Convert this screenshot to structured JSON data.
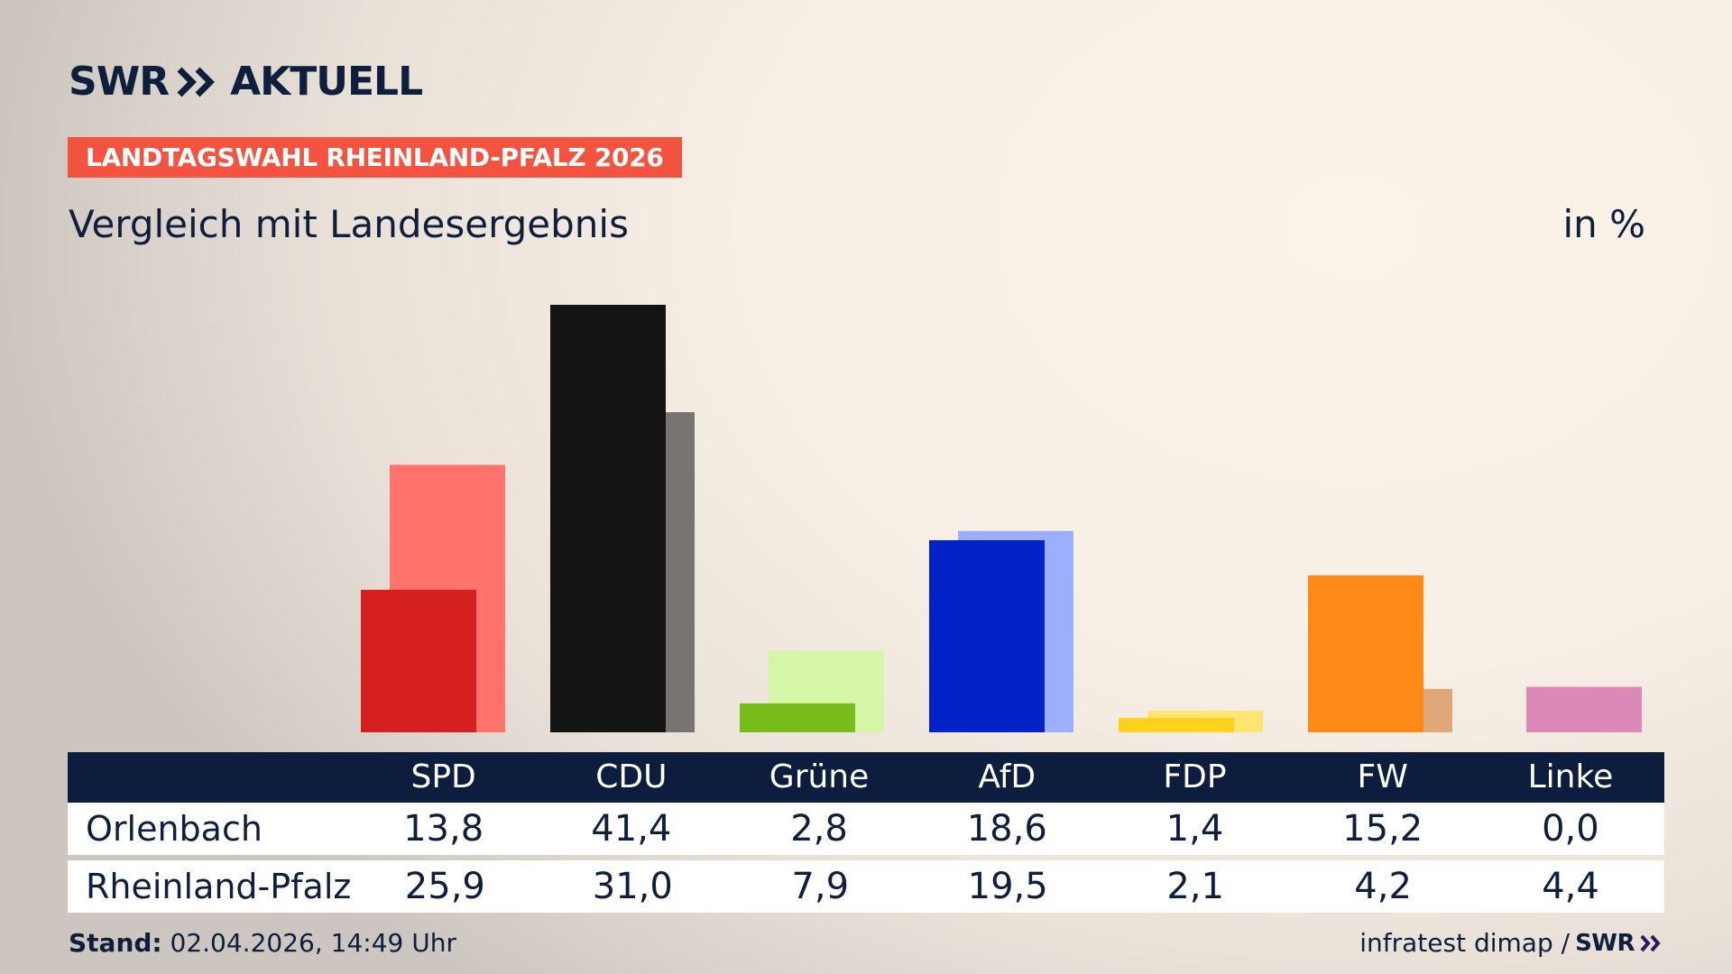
{
  "header": {
    "logo_left": "SWR",
    "logo_right": "AKTUELL",
    "badge": "LANDTAGSWAHL RHEINLAND-PFALZ 2026",
    "subtitle": "Vergleich mit Landesergebnis",
    "unit": "in %"
  },
  "chart_data": {
    "type": "bar",
    "categories": [
      "SPD",
      "CDU",
      "Grüne",
      "AfD",
      "FDP",
      "FW",
      "Linke"
    ],
    "series": [
      {
        "name": "Orlenbach",
        "values": [
          13.8,
          41.4,
          2.8,
          18.6,
          1.4,
          15.2,
          0.0
        ]
      },
      {
        "name": "Rheinland-Pfalz",
        "values": [
          25.9,
          31.0,
          7.9,
          19.5,
          2.1,
          4.2,
          4.4
        ]
      }
    ],
    "colors": {
      "primary": [
        "#d61f1f",
        "#141414",
        "#78bc1b",
        "#0022c6",
        "#ffd21e",
        "#ff8a18",
        "#dc89b8"
      ],
      "secondary": [
        "#ff736c",
        "#777472",
        "#d6f6a7",
        "#9daefc",
        "#ffe472",
        "#e0a778",
        "#dc89b8"
      ]
    },
    "ylim": [
      0,
      45
    ],
    "grid": false,
    "legend": "none"
  },
  "table": {
    "rows": [
      {
        "label": "Orlenbach",
        "values": [
          "13,8",
          "41,4",
          "2,8",
          "18,6",
          "1,4",
          "15,2",
          "0,0"
        ]
      },
      {
        "label": "Rheinland-Pfalz",
        "values": [
          "25,9",
          "31,0",
          "7,9",
          "19,5",
          "2,1",
          "4,2",
          "4,4"
        ]
      }
    ]
  },
  "footer": {
    "stand_label": "Stand:",
    "stand_value": " 02.04.2026, 14:49 Uhr",
    "source": "infratest dimap /",
    "source_logo": "SWR"
  },
  "icons": {
    "logo_arrows": "double-chevron-right-icon"
  }
}
